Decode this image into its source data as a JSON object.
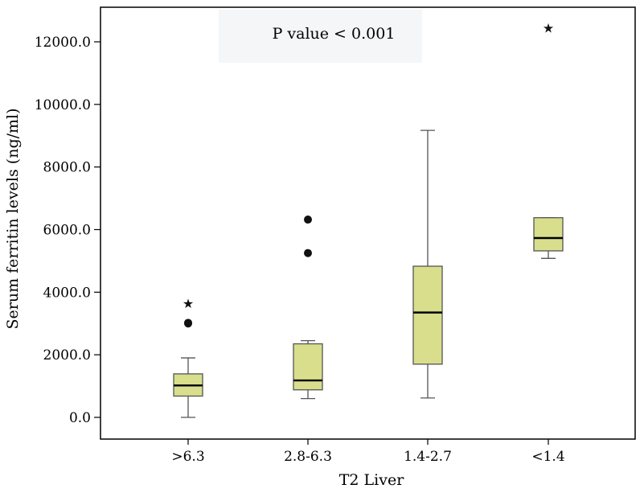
{
  "chart_data": {
    "type": "box",
    "annotation": "P value < 0.001",
    "xlabel": "T2 Liver",
    "ylabel": "Serum ferritin levels (ng/ml)",
    "ylim": [
      -800,
      13300
    ],
    "yticks": [
      0,
      2000,
      4000,
      6000,
      8000,
      10000,
      12000
    ],
    "ytick_labels": [
      "0.0",
      "2000.0",
      "4000.0",
      "6000.0",
      "8000.0",
      "10000.0",
      "12000.0"
    ],
    "categories": [
      ">6.3",
      "2.8-6.3",
      "1.4-2.7",
      "<1.4"
    ],
    "boxes": [
      {
        "category": ">6.3",
        "whisker_low": 0,
        "q1": 680,
        "median": 1020,
        "q3": 1390,
        "whisker_high": 1900,
        "outliers": [
          3000,
          3020
        ],
        "extremes": [
          3650
        ]
      },
      {
        "category": "2.8-6.3",
        "whisker_low": 600,
        "q1": 880,
        "median": 1180,
        "q3": 2350,
        "whisker_high": 2450,
        "outliers": [
          5250,
          6320
        ],
        "extremes": []
      },
      {
        "category": "1.4-2.7",
        "whisker_low": 620,
        "q1": 1700,
        "median": 3350,
        "q3": 4830,
        "whisker_high": 9170,
        "outliers": [],
        "extremes": []
      },
      {
        "category": "<1.4",
        "whisker_low": 5080,
        "q1": 5320,
        "median": 5730,
        "q3": 6380,
        "whisker_high": 6380,
        "outliers": [],
        "extremes": [
          12450
        ]
      }
    ],
    "colors": {
      "box_fill": "#d8de8c",
      "box_stroke": "#555555",
      "median": "#000000",
      "whisker": "#555555"
    }
  }
}
